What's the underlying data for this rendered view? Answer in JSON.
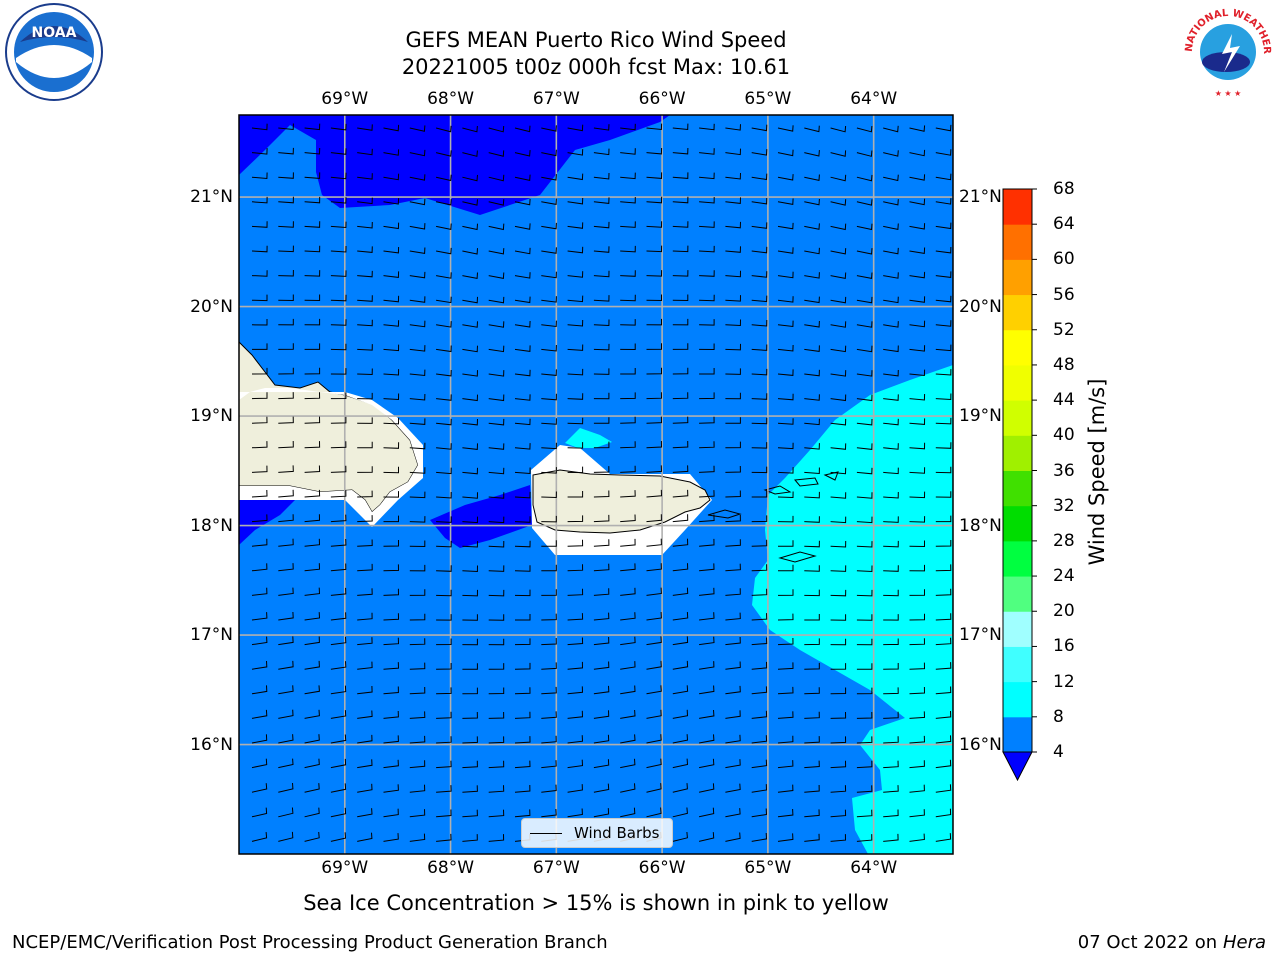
{
  "title_line1": "GEFS MEAN Puerto Rico Wind Speed",
  "title_line2": "20221005 t00z 000h fcst   Max: 10.61",
  "longitude_labels": [
    "69°W",
    "68°W",
    "67°W",
    "66°W",
    "65°W",
    "64°W"
  ],
  "latitude_labels": [
    "21°N",
    "20°N",
    "19°N",
    "18°N",
    "17°N",
    "16°N"
  ],
  "map": {
    "lon_range": [
      -70.0,
      -63.25
    ],
    "lat_range": [
      15.0,
      21.75
    ],
    "gridlines": true,
    "land_color": "#efefdc",
    "ocean_color_4_8": "#0080ff",
    "ocean_color_lt4": "#0000ff",
    "ocean_color_8_12": "#00ffff"
  },
  "colorbar": {
    "title": "Wind Speed [m/s]",
    "ticks": [
      4,
      8,
      12,
      16,
      20,
      24,
      28,
      32,
      36,
      40,
      44,
      48,
      52,
      56,
      60,
      64,
      68
    ],
    "colors": [
      "#0080ff",
      "#00ffff",
      "#40ffff",
      "#a0ffff",
      "#50ff80",
      "#00ff40",
      "#00dd00",
      "#40e000",
      "#a0f000",
      "#d0ff00",
      "#f0ff00",
      "#ffff00",
      "#ffd000",
      "#ffa000",
      "#ff7000",
      "#ff3000"
    ],
    "under_color": "#0000ff"
  },
  "legend": {
    "label": "Wind Barbs"
  },
  "bottom_note": "Sea Ice Concentration > 15% is shown in pink to yellow",
  "credit_left": "NCEP/EMC/Verification Post Processing Product Generation Branch",
  "credit_date": "07 Oct 2022 on",
  "credit_host": "Hera",
  "logos": {
    "left": "NOAA",
    "right": "NATIONAL WEATHER SERVICE"
  }
}
